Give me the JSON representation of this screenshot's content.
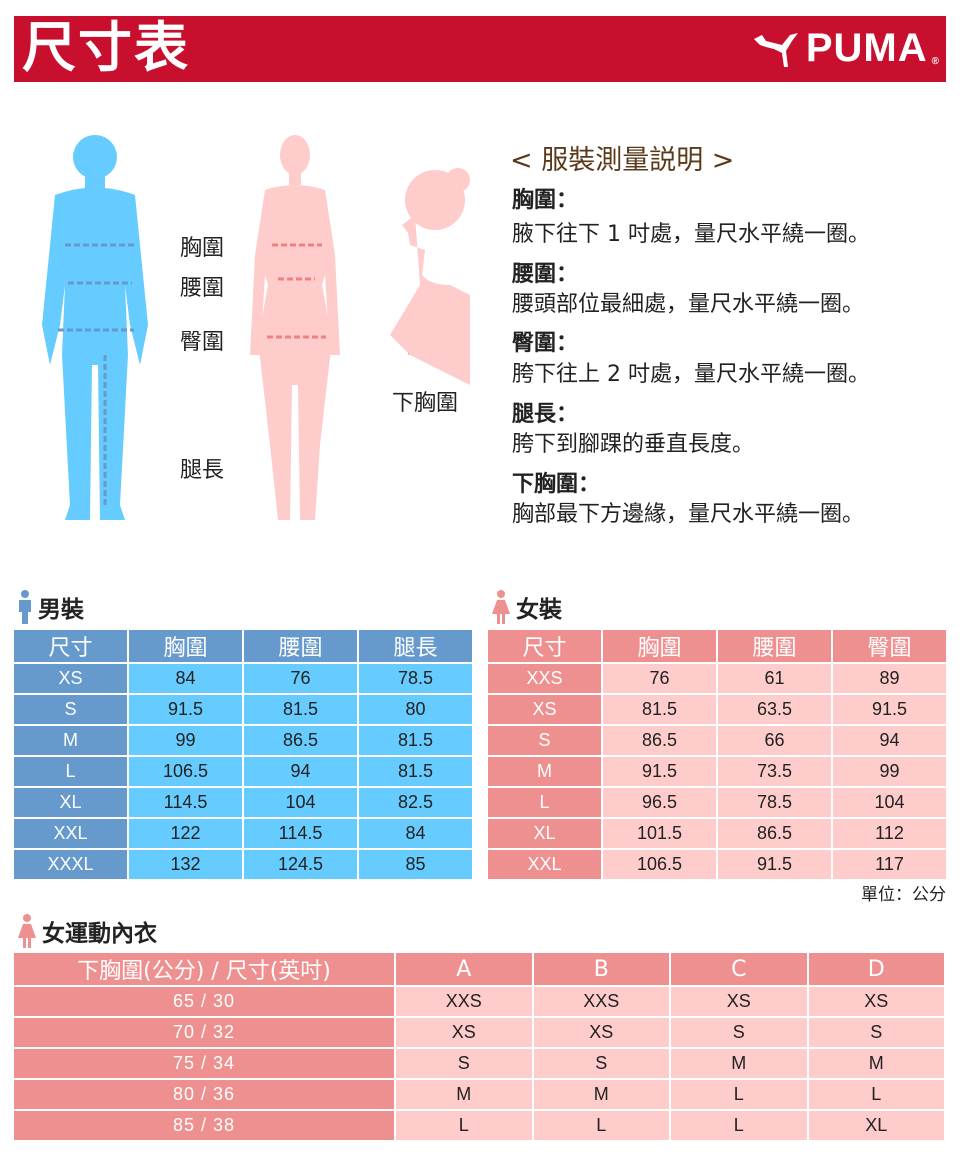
{
  "header": {
    "title": "尺寸表",
    "brand": "PUMA",
    "brand_color": "#c8102e"
  },
  "figure_labels": {
    "chest": "胸圍",
    "waist": "腰圍",
    "hip": "臀圍",
    "leg": "腿長",
    "underbust": "下胸圍"
  },
  "instructions": {
    "title": "< 服裝測量説明 >",
    "items": [
      {
        "heading": "胸圍：",
        "text": "腋下往下 1 吋處，量尺水平繞一圈。"
      },
      {
        "heading": "腰圍：",
        "text": "腰頭部位最細處，量尺水平繞一圈。"
      },
      {
        "heading": "臀圍：",
        "text": "胯下往上 2 吋處，量尺水平繞一圈。"
      },
      {
        "heading": "腿長：",
        "text": "胯下到腳踝的垂直長度。"
      },
      {
        "heading": "下胸圍：",
        "text": "胸部最下方邊緣，量尺水平繞一圈。"
      }
    ]
  },
  "men": {
    "title": "男裝",
    "color": "#6699cc",
    "headers": [
      "尺寸",
      "胸圍",
      "腰圍",
      "腿長"
    ],
    "rows": [
      [
        "XS",
        "84",
        "76",
        "78.5"
      ],
      [
        "S",
        "91.5",
        "81.5",
        "80"
      ],
      [
        "M",
        "99",
        "86.5",
        "81.5"
      ],
      [
        "L",
        "106.5",
        "94",
        "81.5"
      ],
      [
        "XL",
        "114.5",
        "104",
        "82.5"
      ],
      [
        "XXL",
        "122",
        "114.5",
        "84"
      ],
      [
        "XXXL",
        "132",
        "124.5",
        "85"
      ]
    ]
  },
  "women": {
    "title": "女裝",
    "color": "#ef9090",
    "headers": [
      "尺寸",
      "胸圍",
      "腰圍",
      "臀圍"
    ],
    "rows": [
      [
        "XXS",
        "76",
        "61",
        "89"
      ],
      [
        "XS",
        "81.5",
        "63.5",
        "91.5"
      ],
      [
        "S",
        "86.5",
        "66",
        "94"
      ],
      [
        "M",
        "91.5",
        "73.5",
        "99"
      ],
      [
        "L",
        "96.5",
        "78.5",
        "104"
      ],
      [
        "XL",
        "101.5",
        "86.5",
        "112"
      ],
      [
        "XXL",
        "106.5",
        "91.5",
        "117"
      ]
    ]
  },
  "unit": "單位：公分",
  "bra": {
    "title": "女運動內衣",
    "headers": [
      "下胸圍(公分) / 尺寸(英吋)",
      "A",
      "B",
      "C",
      "D"
    ],
    "rows": [
      [
        "65 / 30",
        "XXS",
        "XXS",
        "XS",
        "XS"
      ],
      [
        "70 / 32",
        "XS",
        "XS",
        "S",
        "S"
      ],
      [
        "75 / 34",
        "S",
        "S",
        "M",
        "M"
      ],
      [
        "80 / 36",
        "M",
        "M",
        "L",
        "L"
      ],
      [
        "85 / 38",
        "L",
        "L",
        "L",
        "XL"
      ]
    ]
  }
}
